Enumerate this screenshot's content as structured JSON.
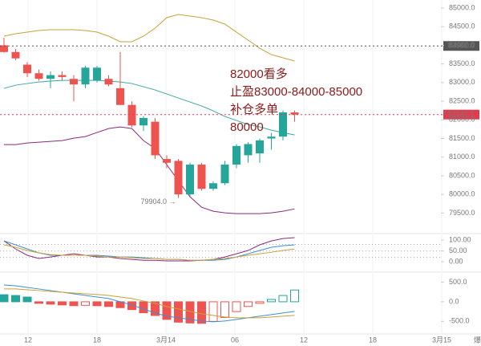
{
  "chart_data": [
    {
      "type": "candlestick",
      "open": [
        84000,
        83820,
        83480,
        83250,
        83100,
        83200,
        83100,
        82950,
        83060,
        83100,
        82850,
        82400,
        81850,
        81950,
        80950,
        80900,
        80000,
        80800,
        80150,
        80300,
        80800,
        81050,
        81100,
        81500,
        81550,
        82200
      ],
      "high": [
        84200,
        83900,
        83550,
        83350,
        83300,
        83300,
        83200,
        83450,
        83450,
        83200,
        83820,
        82500,
        82100,
        82050,
        81050,
        80950,
        80850,
        80850,
        80350,
        80900,
        81350,
        81400,
        81500,
        81650,
        82250,
        82250
      ],
      "low": [
        83800,
        83600,
        83150,
        83050,
        82850,
        83050,
        82500,
        82850,
        83000,
        82900,
        82400,
        81800,
        81700,
        80950,
        80700,
        79904,
        79950,
        80100,
        80100,
        80250,
        80700,
        80850,
        80850,
        81200,
        81450,
        81950
      ],
      "close": [
        83820,
        83650,
        83250,
        83100,
        83200,
        83150,
        82950,
        83400,
        83400,
        82950,
        82400,
        81850,
        82050,
        81050,
        80850,
        80000,
        80800,
        80150,
        80300,
        80800,
        81300,
        81350,
        81450,
        81550,
        82200,
        82142.1
      ],
      "up_color": "#26a69a",
      "down_color": "#ef5350",
      "overlays": [
        {
          "color": "#c9a13b",
          "values": [
            84246,
            84310,
            84353,
            84397,
            84418,
            84418,
            84418,
            84397,
            84353,
            84246,
            84095,
            84095,
            84246,
            84461,
            84741,
            84828,
            84784,
            84741,
            84677,
            84569,
            84353,
            84138,
            83922,
            83750,
            83664,
            83578
          ]
        },
        {
          "color": "#3aa7a0",
          "values": [
            82845,
            82931,
            82974,
            83017,
            83039,
            83060,
            83060,
            83060,
            83060,
            83039,
            83017,
            82974,
            82888,
            82802,
            82694,
            82586,
            82479,
            82371,
            82242,
            82091,
            81983,
            81876,
            81811,
            81724,
            81660,
            81595
          ]
        },
        {
          "color": "#8b2a7a",
          "values": [
            81337,
            81337,
            81380,
            81401,
            81423,
            81444,
            81509,
            81552,
            81660,
            81767,
            81811,
            81767,
            81444,
            81229,
            80798,
            80367,
            79936,
            79656,
            79548,
            79505,
            79483,
            79483,
            79483,
            79505,
            79548,
            79612
          ]
        }
      ],
      "price_lines": [
        {
          "value": 83982,
          "label": "83982.0",
          "color": "#555555"
        },
        {
          "value": 82142.1,
          "label": "82142.1",
          "color": "#e23b4e"
        }
      ],
      "ylim": [
        78970,
        85215
      ],
      "yticks": [
        {
          "value": 85000,
          "label": "85000.0"
        },
        {
          "value": 84500,
          "label": "84500.0"
        },
        {
          "value": 84000,
          "label": "84000.0"
        },
        {
          "value": 83500,
          "label": "83500.0"
        },
        {
          "value": 83000,
          "label": "83000.0"
        },
        {
          "value": 82500,
          "label": "82500.0"
        },
        {
          "value": 82000,
          "label": "82000.0"
        },
        {
          "value": 81500,
          "label": "81500.0"
        },
        {
          "value": 81000,
          "label": "81000.0"
        },
        {
          "value": 80500,
          "label": "80500.0"
        },
        {
          "value": 80000,
          "label": "80000.0"
        },
        {
          "value": 79500,
          "label": "79500.0"
        }
      ],
      "annotations": [
        "82000看多",
        "止盈83000-84000-85000",
        "补仓多单",
        "80000"
      ],
      "low_marker": {
        "value": 79904,
        "label": "79904.0 →"
      },
      "x_labels": [
        "12",
        "18",
        "3月14",
        "06",
        "12",
        "18",
        "3月15"
      ],
      "corner_label": "爆"
    },
    {
      "type": "line",
      "ylim": [
        -44,
        126
      ],
      "yticks": [
        {
          "value": 100,
          "label": "100.00"
        },
        {
          "value": 50,
          "label": "50.00"
        },
        {
          "value": 0,
          "label": "0.00"
        }
      ],
      "reference_lines": [
        80,
        50,
        20
      ],
      "series": [
        {
          "color": "#8b2a7a",
          "values": [
            96,
            59,
            30,
            15,
            22,
            30,
            37,
            30,
            22,
            22,
            15,
            11,
            7,
            7,
            4,
            4,
            4,
            7,
            11,
            22,
            37,
            52,
            78,
            96,
            107,
            111
          ]
        },
        {
          "color": "#3d8fd1",
          "values": [
            96,
            78,
            59,
            41,
            30,
            30,
            30,
            30,
            30,
            26,
            22,
            22,
            19,
            15,
            11,
            11,
            7,
            7,
            7,
            11,
            22,
            37,
            52,
            67,
            74,
            78
          ]
        },
        {
          "color": "#c9a13b",
          "values": [
            78,
            67,
            52,
            41,
            33,
            30,
            30,
            30,
            26,
            22,
            22,
            19,
            15,
            15,
            11,
            11,
            7,
            7,
            11,
            15,
            22,
            30,
            37,
            44,
            52,
            59
          ]
        }
      ]
    },
    {
      "type": "macd",
      "ylim": [
        -800,
        735
      ],
      "yticks": [
        {
          "value": 500,
          "label": "500.0"
        },
        {
          "value": 0,
          "label": "0.0"
        },
        {
          "value": -500,
          "label": "-500.0"
        }
      ],
      "histogram": [
        180,
        160,
        120,
        -40,
        -60,
        -80,
        -100,
        -90,
        -100,
        -120,
        -150,
        -200,
        -280,
        -350,
        -450,
        -520,
        -540,
        -550,
        -500,
        -400,
        -250,
        -120,
        -40,
        60,
        160,
        300
      ],
      "up_color": "#26a69a",
      "down_color": "#ef5350",
      "series": [
        {
          "color": "#3d8fd1",
          "values": [
            429,
            408,
            367,
            327,
            286,
            245,
            204,
            163,
            122,
            82,
            0,
            -82,
            -184,
            -286,
            -367,
            -408,
            -449,
            -490,
            -510,
            -490,
            -449,
            -408,
            -367,
            -327,
            -286,
            -245
          ]
        },
        {
          "color": "#c9a13b",
          "values": [
            327,
            327,
            306,
            286,
            265,
            245,
            224,
            204,
            184,
            163,
            122,
            82,
            20,
            -41,
            -122,
            -184,
            -245,
            -306,
            -347,
            -388,
            -408,
            -408,
            -408,
            -388,
            -367,
            -347
          ]
        }
      ]
    }
  ]
}
